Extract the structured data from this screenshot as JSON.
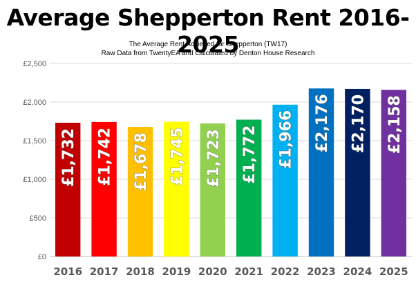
{
  "chart_data": {
    "type": "bar",
    "title": "Average Shepperton Rent 2016-2025",
    "subtitle_lines": [
      "The Average Rent Achieved for Shepperton (TW17)",
      "Raw Data from TwentyEA and Calculated by Denton House Research"
    ],
    "xlabel": "",
    "ylabel": "",
    "categories": [
      "2016",
      "2017",
      "2018",
      "2019",
      "2020",
      "2021",
      "2022",
      "2023",
      "2024",
      "2025"
    ],
    "values": [
      1732,
      1742,
      1678,
      1745,
      1723,
      1772,
      1966,
      2176,
      2170,
      2158
    ],
    "data_labels": [
      "£1,732",
      "£1,742",
      "£1,678",
      "£1,745",
      "£1,723",
      "£1,772",
      "£1,966",
      "£2,176",
      "£2,170",
      "£2,158"
    ],
    "bar_colors": [
      "#c00000",
      "#ff0000",
      "#ffc000",
      "#ffff00",
      "#92d050",
      "#00b050",
      "#00b0f0",
      "#0070c0",
      "#002060",
      "#7030a0"
    ],
    "ylim": [
      0,
      2500
    ],
    "yticks": [
      0,
      500,
      1000,
      1500,
      2000,
      2500
    ],
    "ytick_labels": [
      "£0",
      "£500",
      "£1,000",
      "£1,500",
      "£2,000",
      "£2,500"
    ],
    "grid": true,
    "legend": "none"
  }
}
